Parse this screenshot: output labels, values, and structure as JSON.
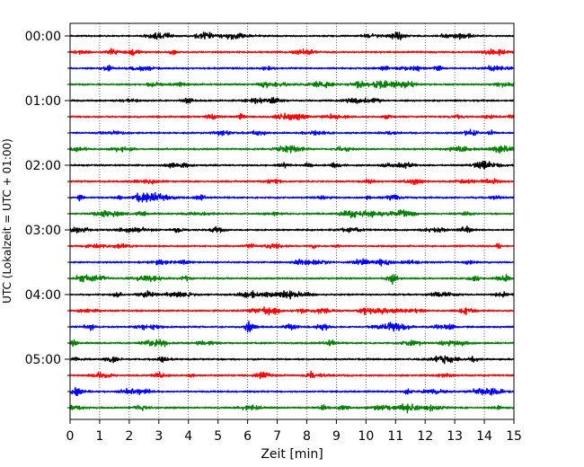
{
  "chart_data": {
    "type": "line",
    "title": "",
    "xlabel": "Zeit  [min]",
    "ylabel": "UTC (Lokalzeit = UTC + 01:00)",
    "xlim": [
      0,
      15
    ],
    "x_ticks": [
      "0",
      "1",
      "2",
      "3",
      "4",
      "5",
      "6",
      "7",
      "8",
      "9",
      "10",
      "11",
      "12",
      "13",
      "14",
      "15"
    ],
    "y_tick_labels": [
      "00:00",
      "01:00",
      "02:00",
      "03:00",
      "04:00",
      "05:00"
    ],
    "trace_interval_minutes": 15,
    "trace_count": 24,
    "trace_colors": [
      "#000000",
      "#ff0000",
      "#0000ff",
      "#008000"
    ],
    "grid": "vertical dotted at each minute",
    "legend": "none"
  }
}
